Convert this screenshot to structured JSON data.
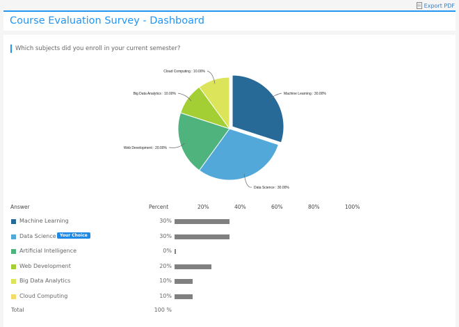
{
  "export_label": "Export PDF",
  "title": "Course Evaluation Survey - Dashboard",
  "question": "Which subjects did you enroll in your current semester?",
  "table": {
    "answer_header": "Answer",
    "percent_header": "Percent",
    "axis_ticks": [
      "20%",
      "40%",
      "60%",
      "80%",
      "100%"
    ],
    "your_choice": "Your Choice",
    "rows": [
      {
        "label": "Machine Learning",
        "percent": "30%",
        "value": 30,
        "color": "#276a98"
      },
      {
        "label": "Data Science",
        "percent": "30%",
        "value": 30,
        "color": "#52a9d9",
        "chosen": true
      },
      {
        "label": "Artificial Intelligence",
        "percent": "0%",
        "value": 0,
        "color": "#4fb37e"
      },
      {
        "label": "Web Development",
        "percent": "20%",
        "value": 20,
        "color": "#a3cf35"
      },
      {
        "label": "Big Data Analytics",
        "percent": "10%",
        "value": 10,
        "color": "#dce45a"
      },
      {
        "label": "Cloud  Computing",
        "percent": "10%",
        "value": 10,
        "color": "#f3dc6a"
      }
    ],
    "total_label": "Total",
    "total_value": "100 %"
  },
  "chart_data": {
    "type": "pie",
    "slices": [
      {
        "label": "Machine Learning : 30.00%",
        "value": 30,
        "color": "#276a98",
        "exploded": true
      },
      {
        "label": "Data Science : 30.00%",
        "value": 30,
        "color": "#52a9d9"
      },
      {
        "label": "Web Development : 20.00%",
        "value": 20,
        "color": "#4fb37e"
      },
      {
        "label": "Big Data Analytics : 10.00%",
        "value": 10,
        "color": "#a3cf35"
      },
      {
        "label": "Cloud  Computing : 10.00%",
        "value": 10,
        "color": "#dce45a"
      }
    ]
  }
}
